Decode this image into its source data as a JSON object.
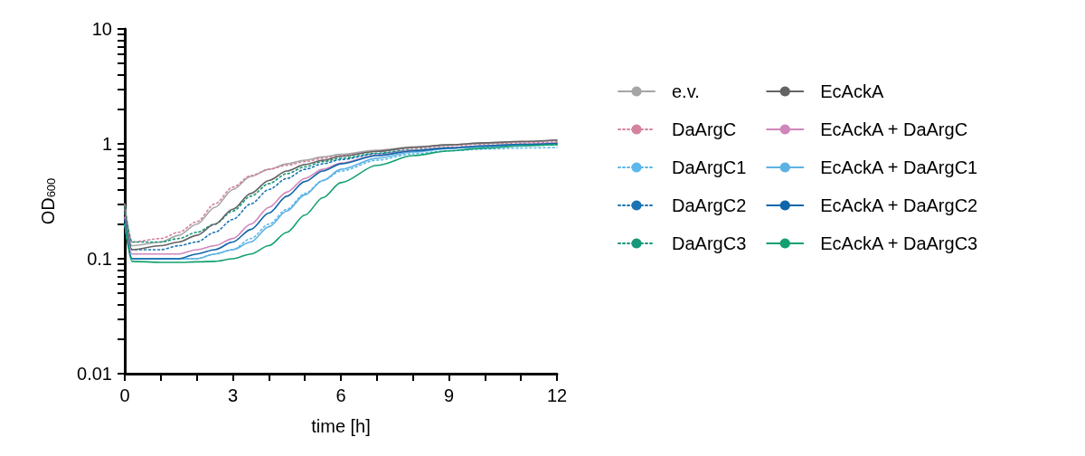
{
  "chart_data": {
    "type": "line",
    "xlabel": "time [h]",
    "ylabel": "OD$_{600}$",
    "log": "y",
    "grid": false,
    "legend": "right",
    "marker": "none",
    "x": [
      0,
      0.2,
      1,
      1.5,
      2,
      2.5,
      3,
      3.5,
      4,
      4.5,
      5,
      5.5,
      6,
      7,
      8,
      9,
      10,
      11,
      12
    ],
    "xlim": [
      0,
      12
    ],
    "xticks": [
      0,
      {
        "value": 1,
        "label": null
      },
      {
        "value": 2,
        "label": null
      },
      3,
      {
        "value": 4,
        "label": null
      },
      {
        "value": 5,
        "label": null
      },
      6,
      {
        "value": 7,
        "label": null
      },
      {
        "value": 8,
        "label": null
      },
      9,
      {
        "value": 10,
        "label": null
      },
      {
        "value": 11,
        "label": null
      },
      12
    ],
    "ylim": [
      0.01,
      10
    ],
    "yticks": [
      0.01,
      {
        "value": 0.02,
        "label": null
      },
      {
        "value": 0.03,
        "label": null
      },
      {
        "value": 0.04,
        "label": null
      },
      {
        "value": 0.05,
        "label": null
      },
      {
        "value": 0.06,
        "label": null
      },
      {
        "value": 0.07,
        "label": null
      },
      {
        "value": 0.08,
        "label": null
      },
      {
        "value": 0.09,
        "label": null
      },
      0.1,
      {
        "value": 0.2,
        "label": null
      },
      {
        "value": 0.3,
        "label": null
      },
      {
        "value": 0.4,
        "label": null
      },
      {
        "value": 0.5,
        "label": null
      },
      {
        "value": 0.6,
        "label": null
      },
      {
        "value": 0.7,
        "label": null
      },
      {
        "value": 0.8,
        "label": null
      },
      {
        "value": 0.9,
        "label": null
      },
      1,
      {
        "value": 2,
        "label": null
      },
      {
        "value": 3,
        "label": null
      },
      {
        "value": 4,
        "label": null
      },
      {
        "value": 5,
        "label": null
      },
      {
        "value": 6,
        "label": null
      },
      {
        "value": 7,
        "label": null
      },
      {
        "value": 8,
        "label": null
      },
      {
        "value": 9,
        "label": null
      },
      10
    ],
    "series": [
      {
        "name": "e.v.",
        "color": "#a6a6a6",
        "line_style": "solid",
        "values": [
          0.3,
          0.13,
          0.14,
          0.16,
          0.2,
          0.28,
          0.4,
          0.52,
          0.6,
          0.67,
          0.72,
          0.77,
          0.81,
          0.88,
          0.94,
          0.98,
          1.01,
          1.04,
          1.07
        ]
      },
      {
        "name": "DaArgC",
        "color": "#d4829f",
        "line_style": "dotted",
        "values": [
          0.27,
          0.14,
          0.15,
          0.17,
          0.21,
          0.3,
          0.42,
          0.53,
          0.6,
          0.65,
          0.7,
          0.75,
          0.79,
          0.86,
          0.92,
          0.97,
          1.0,
          1.02,
          1.04
        ]
      },
      {
        "name": "DaArgC1",
        "color": "#5cb8ea",
        "line_style": "dotted",
        "values": [
          0.2,
          0.1,
          0.1,
          0.1,
          0.1,
          0.11,
          0.12,
          0.15,
          0.2,
          0.27,
          0.37,
          0.48,
          0.58,
          0.72,
          0.82,
          0.87,
          0.9,
          0.92,
          0.93
        ]
      },
      {
        "name": "DaArgC2",
        "color": "#1a74b4",
        "line_style": "dotted",
        "values": [
          0.25,
          0.12,
          0.12,
          0.13,
          0.14,
          0.17,
          0.22,
          0.3,
          0.4,
          0.5,
          0.6,
          0.67,
          0.73,
          0.82,
          0.88,
          0.92,
          0.95,
          0.97,
          0.99
        ]
      },
      {
        "name": "DaArgC3",
        "color": "#17977a",
        "line_style": "dotted",
        "values": [
          0.28,
          0.14,
          0.14,
          0.15,
          0.17,
          0.2,
          0.26,
          0.35,
          0.45,
          0.55,
          0.63,
          0.7,
          0.75,
          0.83,
          0.89,
          0.93,
          0.96,
          0.97,
          0.98
        ]
      },
      {
        "name": "EcAckA",
        "color": "#636363",
        "line_style": "solid",
        "values": [
          0.26,
          0.12,
          0.13,
          0.14,
          0.16,
          0.2,
          0.27,
          0.37,
          0.48,
          0.58,
          0.66,
          0.72,
          0.78,
          0.86,
          0.93,
          0.98,
          1.02,
          1.05,
          1.08
        ]
      },
      {
        "name": "EcAckA + DaArgC",
        "color": "#cf86ba",
        "line_style": "solid",
        "values": [
          0.23,
          0.11,
          0.11,
          0.11,
          0.12,
          0.13,
          0.15,
          0.2,
          0.28,
          0.38,
          0.5,
          0.6,
          0.68,
          0.8,
          0.88,
          0.93,
          0.96,
          0.99,
          1.02
        ]
      },
      {
        "name": "EcAckA + DaArgC1",
        "color": "#5db2e2",
        "line_style": "solid",
        "values": [
          0.2,
          0.1,
          0.1,
          0.1,
          0.1,
          0.11,
          0.12,
          0.14,
          0.19,
          0.26,
          0.36,
          0.48,
          0.6,
          0.75,
          0.85,
          0.91,
          0.95,
          0.98,
          1.0
        ]
      },
      {
        "name": "EcAckA + DaArgC2",
        "color": "#0f66aa",
        "line_style": "solid",
        "values": [
          0.22,
          0.1,
          0.1,
          0.1,
          0.11,
          0.12,
          0.14,
          0.18,
          0.25,
          0.35,
          0.47,
          0.58,
          0.67,
          0.79,
          0.87,
          0.92,
          0.96,
          0.99,
          1.01
        ]
      },
      {
        "name": "EcAckA + DaArgC3",
        "color": "#12a070",
        "line_style": "solid",
        "values": [
          0.2,
          0.095,
          0.093,
          0.093,
          0.094,
          0.095,
          0.1,
          0.11,
          0.13,
          0.17,
          0.24,
          0.34,
          0.46,
          0.65,
          0.79,
          0.87,
          0.92,
          0.96,
          0.99
        ]
      }
    ]
  }
}
